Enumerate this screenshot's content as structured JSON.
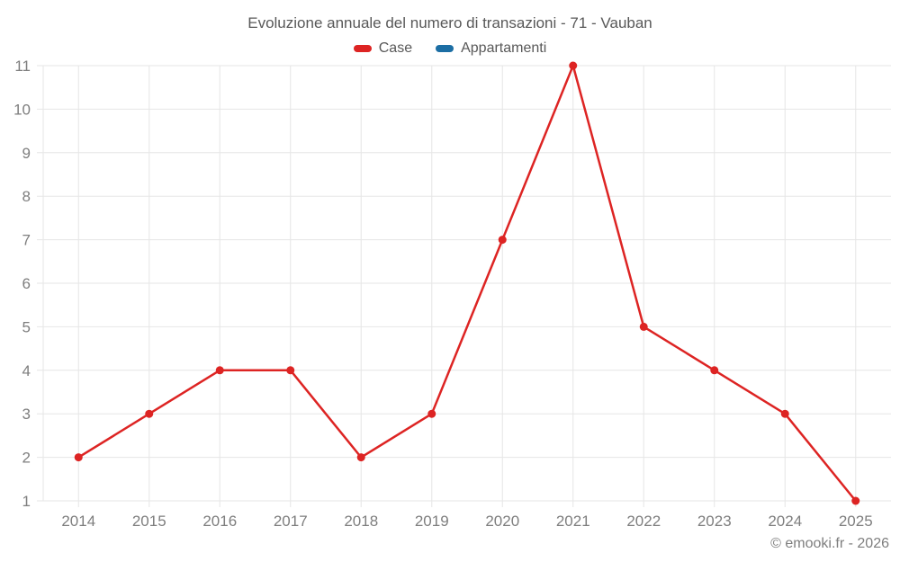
{
  "chart_data": {
    "type": "line",
    "title": "Evoluzione annuale del numero di transazioni - 71 - Vauban",
    "categories": [
      "2014",
      "2015",
      "2016",
      "2017",
      "2018",
      "2019",
      "2020",
      "2021",
      "2022",
      "2023",
      "2024",
      "2025"
    ],
    "series": [
      {
        "name": "Case",
        "color": "#dd2423",
        "values": [
          2,
          3,
          4,
          4,
          2,
          3,
          7,
          11,
          5,
          4,
          3,
          1
        ]
      },
      {
        "name": "Appartamenti",
        "color": "#1c6ea4",
        "values": []
      }
    ],
    "xlabel": "",
    "ylabel": "",
    "ylim": [
      1,
      11
    ],
    "yticks": [
      1,
      2,
      3,
      4,
      5,
      6,
      7,
      8,
      9,
      10,
      11
    ],
    "grid": true,
    "legend_position": "top",
    "marker": "circle"
  },
  "legend": {
    "items": [
      {
        "label": "Case",
        "color": "#dd2423"
      },
      {
        "label": "Appartamenti",
        "color": "#1c6ea4"
      }
    ]
  },
  "footer": {
    "copyright": "© emooki.fr - 2026"
  },
  "style": {
    "grid_color": "#e6e6e6",
    "axis_label_color": "#7e7e7e",
    "title_color": "#585858",
    "background": "#ffffff"
  }
}
